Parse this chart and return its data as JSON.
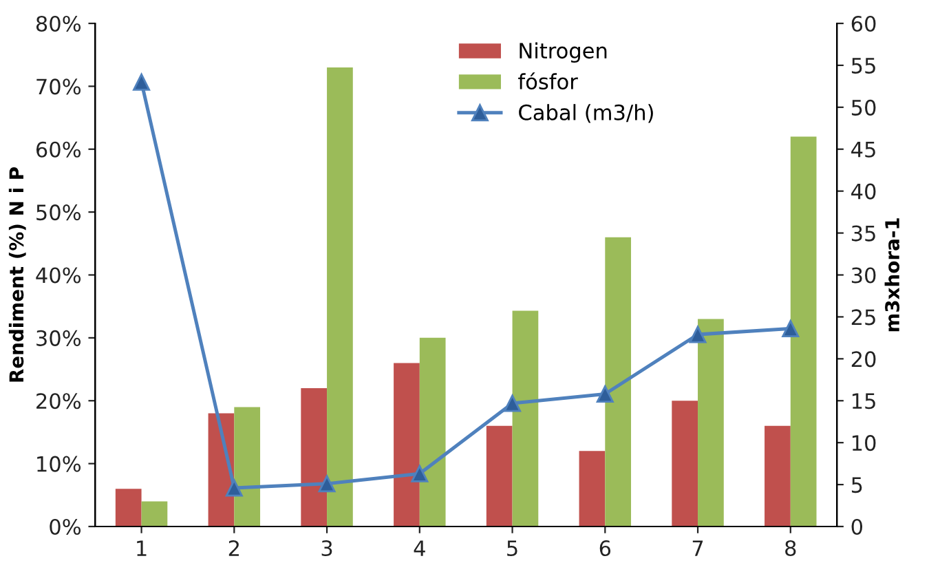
{
  "chart_data": {
    "type": "bar",
    "categories": [
      "1",
      "2",
      "3",
      "4",
      "5",
      "6",
      "7",
      "8"
    ],
    "ylabel": "Rendiment (%) N i P",
    "y2label": "m3xhora-1",
    "series": [
      {
        "name": "Nitrogen",
        "color": "#c0504d",
        "values": [
          6,
          18,
          22,
          26,
          16,
          12,
          20,
          16
        ]
      },
      {
        "name": "fósfor",
        "color": "#9bbb59",
        "values": [
          4,
          19,
          73,
          30,
          34.3,
          46,
          33,
          62
        ]
      },
      {
        "name": "Cabal (m3/h)",
        "type": "line",
        "axis": "y2",
        "color": "#4f81bd",
        "marker": "triangle",
        "values": [
          53,
          4.6,
          5.1,
          6.3,
          14.7,
          15.8,
          22.9,
          23.6
        ]
      }
    ],
    "ylim": [
      0,
      80
    ],
    "yticks": [
      {
        "value": 0,
        "label": "0%"
      },
      {
        "value": 10,
        "label": "10%"
      },
      {
        "value": 20,
        "label": "20%"
      },
      {
        "value": 30,
        "label": "30%"
      },
      {
        "value": 40,
        "label": "40%"
      },
      {
        "value": 50,
        "label": "50%"
      },
      {
        "value": 60,
        "label": "60%"
      },
      {
        "value": 70,
        "label": "70%"
      },
      {
        "value": 80,
        "label": "80%"
      }
    ],
    "y2lim": [
      0,
      60
    ],
    "y2ticks": [
      0,
      5,
      10,
      15,
      20,
      25,
      30,
      35,
      40,
      45,
      50,
      55,
      60
    ],
    "legend": "top right",
    "grid": false
  }
}
